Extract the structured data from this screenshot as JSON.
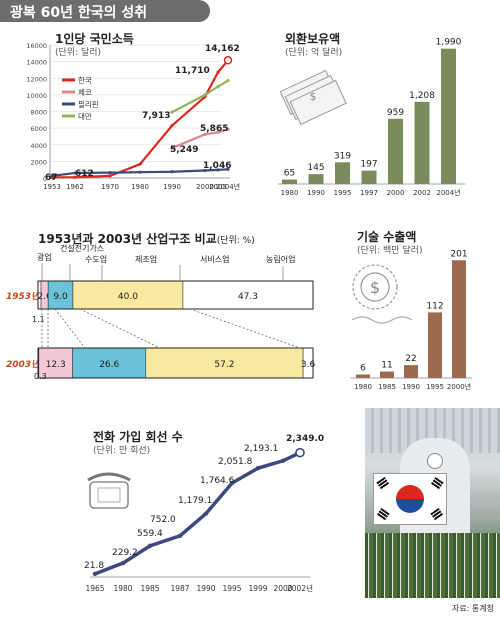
{
  "banner": {
    "title": "광복 60년 한국의 성취"
  },
  "source": "자료: 통계청",
  "colors": {
    "green_bar": "#7a8c5c",
    "brown_bar": "#9c6b4f",
    "line_blue": "#3c4a80",
    "korea_red": "#d9281e",
    "czech_pink": "#d88b8b",
    "philippines_navy": "#3b4a7a",
    "taiwan_green": "#93b55b",
    "agri_pink": "#f3c7d6",
    "mining_blue": "#5a9fd4",
    "mfg_cyan": "#6bc3d9",
    "service_yellow": "#f9e8a0"
  },
  "icons": {
    "money": "money-stack-icon",
    "dollar_coin": "dollar-coin-icon",
    "phone": "telephone-icon"
  },
  "chart_data": [
    {
      "type": "line",
      "title": "1인당 국민소득",
      "subtitle": "(단위: 달러)",
      "x": [
        "1953",
        "1962",
        "1970",
        "1980",
        "1990",
        "2000",
        "2003",
        "2004년"
      ],
      "ylim": [
        0,
        16000
      ],
      "yticks": [
        "0",
        "2000",
        "4000",
        "6000",
        "8000",
        "10000",
        "12000",
        "14000",
        "16000"
      ],
      "series": [
        {
          "name": "한국",
          "color": "#d9281e",
          "x": [
            1953,
            1962,
            1970,
            1980,
            1990,
            2000,
            2003,
            2004
          ],
          "values": [
            67,
            87,
            253,
            1660,
            6303,
            9770,
            12717,
            14162
          ]
        },
        {
          "name": "체코",
          "color": "#d88b8b",
          "x": [
            1990,
            2000,
            2003,
            2004
          ],
          "values": [
            3600,
            5249,
            5500,
            5865
          ]
        },
        {
          "name": "필리핀",
          "color": "#3b4a7a",
          "x": [
            1953,
            1962,
            1970,
            1980,
            1990,
            2000,
            2003,
            2004
          ],
          "values": [
            250,
            612,
            650,
            700,
            750,
            900,
            980,
            1046
          ]
        },
        {
          "name": "대만",
          "color": "#93b55b",
          "x": [
            1990,
            2000,
            2003,
            2004
          ],
          "values": [
            7913,
            10000,
            11000,
            11710
          ]
        }
      ],
      "labels": [
        "67",
        "612",
        "7,913",
        "5,249",
        "11,710",
        "14,162",
        "5,865",
        "1,046"
      ]
    },
    {
      "type": "bar",
      "title": "외환보유액",
      "subtitle": "(단위: 억 달러)",
      "categories": [
        "1980",
        "1990",
        "1995",
        "1997",
        "2000",
        "2002",
        "2004년"
      ],
      "values": [
        65,
        145,
        319,
        197,
        959,
        1208,
        1990
      ],
      "labels": [
        "65",
        "145",
        "319",
        "197",
        "959",
        "1,208",
        "1,990"
      ],
      "ylim": [
        0,
        2000
      ]
    },
    {
      "type": "bar",
      "title": "1953년과 2003년 산업구조 비교",
      "subtitle": "(단위: %)",
      "categories": [
        "1953년",
        "2003년"
      ],
      "segment_names": [
        "농림어업",
        "광업",
        "제조업",
        "건설전기가스 수도업",
        "서비스업"
      ],
      "rows": [
        {
          "year": "1953년",
          "values": [
            47.3,
            1.1,
            9.0,
            2.6,
            40.0
          ]
        },
        {
          "year": "2003년",
          "values": [
            3.6,
            0.3,
            26.6,
            12.3,
            57.2
          ]
        }
      ],
      "segment_labels": [
        "광업",
        "건설전기가스",
        "수도업",
        "제조업",
        "서비스업",
        "농림어업"
      ]
    },
    {
      "type": "bar",
      "title": "기술 수출액",
      "subtitle": "(단위: 백만 달러)",
      "categories": [
        "1980",
        "1985",
        "1990",
        "1995",
        "2000년"
      ],
      "values": [
        6,
        11,
        22,
        112,
        201
      ],
      "ylim": [
        0,
        210
      ]
    },
    {
      "type": "line",
      "title": "전화 가입 회선 수",
      "subtitle": "(단위: 만 회선)",
      "categories": [
        "1965",
        "1980",
        "1985",
        "1987",
        "1990",
        "1995",
        "1999",
        "2000",
        "2002년"
      ],
      "values": [
        21.8,
        229.2,
        559.4,
        752.0,
        1179.1,
        1764.6,
        2051.8,
        2193.1,
        2349.0
      ],
      "labels": [
        "21.8",
        "229.2",
        "559.4",
        "752.0",
        "1,179.1",
        "1,764.6",
        "2,051.8",
        "2,193.1",
        "2,349.0"
      ]
    }
  ]
}
